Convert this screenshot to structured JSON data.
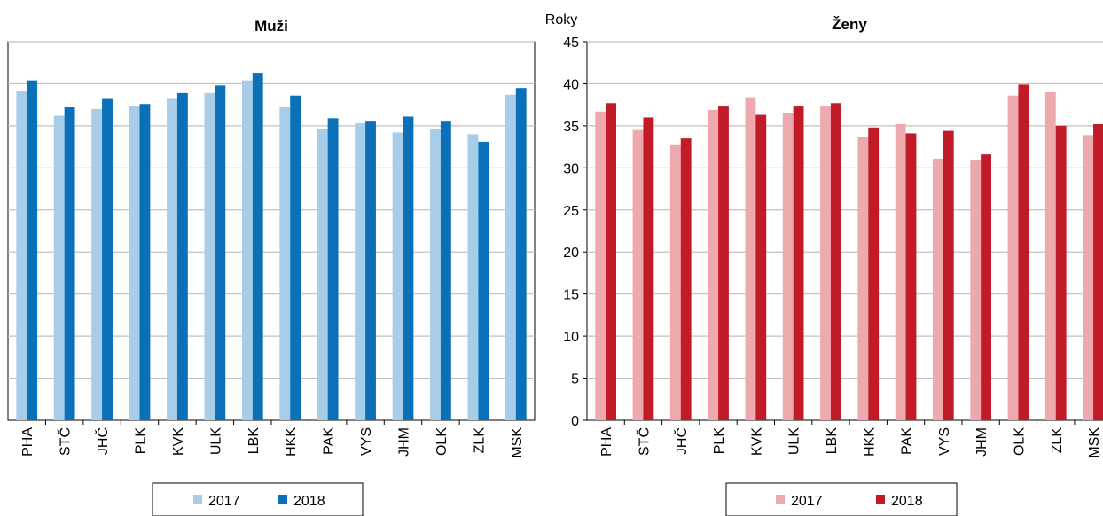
{
  "y_unit_label": "Roky",
  "chart_data": [
    {
      "type": "bar",
      "title": "Muži",
      "categories": [
        "PHA",
        "STČ",
        "JHČ",
        "PLK",
        "KVK",
        "ULK",
        "LBK",
        "HKK",
        "PAK",
        "VYS",
        "JHM",
        "OLK",
        "ZLK",
        "MSK"
      ],
      "ylim": [
        0,
        45
      ],
      "yticks": [
        0,
        5,
        10,
        15,
        20,
        25,
        30,
        35,
        40,
        45
      ],
      "grid": true,
      "legend_position": "bottom",
      "series": [
        {
          "name": "2017",
          "color": "#a8cde8",
          "values": [
            39.1,
            36.2,
            37.0,
            37.4,
            38.2,
            38.9,
            40.4,
            37.2,
            34.6,
            35.3,
            34.2,
            34.6,
            34.0,
            38.7
          ]
        },
        {
          "name": "2018",
          "color": "#0a70b8",
          "values": [
            40.4,
            37.2,
            38.2,
            37.6,
            38.9,
            39.8,
            41.3,
            38.6,
            35.9,
            35.5,
            36.1,
            35.5,
            33.1,
            39.5
          ]
        }
      ]
    },
    {
      "type": "bar",
      "title": "Ženy",
      "categories": [
        "PHA",
        "STČ",
        "JHČ",
        "PLK",
        "KVK",
        "ULK",
        "LBK",
        "HKK",
        "PAK",
        "VYS",
        "JHM",
        "OLK",
        "ZLK",
        "MSK"
      ],
      "ylim": [
        0,
        45
      ],
      "yticks": [
        0,
        5,
        10,
        15,
        20,
        25,
        30,
        35,
        40,
        45
      ],
      "grid": true,
      "legend_position": "bottom",
      "series": [
        {
          "name": "2017",
          "color": "#eda9ae",
          "values": [
            36.7,
            34.5,
            32.8,
            36.9,
            38.4,
            36.5,
            37.3,
            33.7,
            35.2,
            31.1,
            30.9,
            38.6,
            39.0,
            33.9
          ]
        },
        {
          "name": "2018",
          "color": "#c11b27",
          "values": [
            37.7,
            36.0,
            33.5,
            37.3,
            36.3,
            37.3,
            37.7,
            34.8,
            34.1,
            34.4,
            31.6,
            39.9,
            35.0,
            35.2
          ]
        }
      ]
    }
  ]
}
